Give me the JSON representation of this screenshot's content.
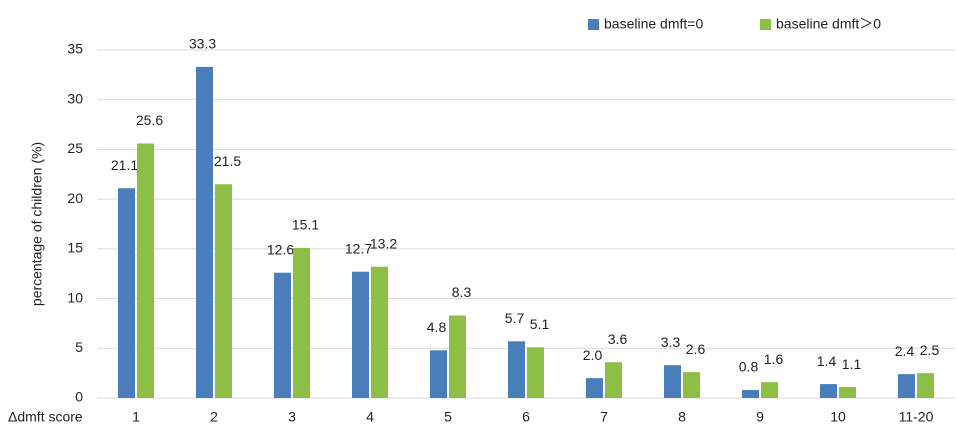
{
  "chart_data": {
    "type": "bar",
    "y_label": "percentage of children (%)",
    "x_label": "Δdmft score",
    "categories": [
      "1",
      "2",
      "3",
      "4",
      "5",
      "6",
      "7",
      "8",
      "9",
      "10",
      "11-20"
    ],
    "series": [
      {
        "name": "baseline dmft=0",
        "color": "#4a7ebb",
        "values": [
          21.1,
          33.3,
          12.6,
          12.7,
          4.8,
          5.7,
          2.0,
          3.3,
          0.8,
          1.4,
          2.4
        ],
        "value_labels": [
          "21.1",
          "33.3",
          "12.6",
          "12.7",
          "4.8",
          "5.7",
          "2.0",
          "3.3",
          "0.8",
          "1.4",
          "2.4"
        ]
      },
      {
        "name": "baseline dmft＞0",
        "color": "#8dbf47",
        "values": [
          25.6,
          21.5,
          15.1,
          13.2,
          8.3,
          5.1,
          3.6,
          2.6,
          1.6,
          1.1,
          2.5
        ],
        "value_labels": [
          "25.6",
          "21.5",
          "15.1",
          "13.2",
          "8.3",
          "5.1",
          "3.6",
          "2.6",
          "1.6",
          "1.1",
          "2.5"
        ]
      }
    ],
    "ylim": [
      0,
      35
    ],
    "yticks": [
      0,
      5,
      10,
      15,
      20,
      25,
      30,
      35
    ],
    "grid": true,
    "legend": "top-right"
  }
}
